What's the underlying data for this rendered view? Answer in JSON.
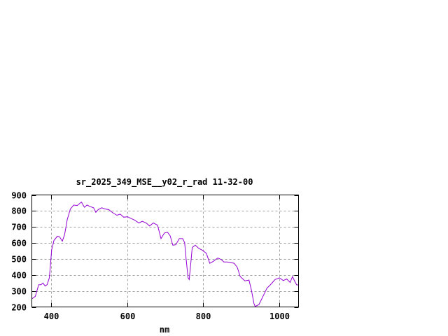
{
  "chart_data": {
    "type": "line",
    "title": "sr_2025_349_MSE__y02_r_rad 11-32-00",
    "xlabel": "nm",
    "ylabel": "",
    "xlim": [
      350,
      1050
    ],
    "ylim": [
      200,
      900
    ],
    "xticks": [
      400,
      600,
      800,
      1000
    ],
    "yticks": [
      200,
      300,
      400,
      500,
      600,
      700,
      800,
      900
    ],
    "grid": true,
    "legend": "none",
    "line_color": "#9400d3",
    "series": [
      {
        "x": [
          350,
          359,
          368,
          374,
          379,
          385,
          390,
          396,
          399,
          402,
          408,
          417,
          423,
          430,
          436,
          443,
          451,
          460,
          469,
          480,
          488,
          495,
          503,
          512,
          518,
          524,
          533,
          543,
          552,
          561,
          573,
          582,
          591,
          601,
          610,
          619,
          631,
          640,
          650,
          659,
          669,
          680,
          689,
          698,
          706,
          713,
          720,
          728,
          737,
          746,
          751,
          755,
          760,
          763,
          767,
          771,
          779,
          789,
          798,
          808,
          817,
          826,
          838,
          847,
          854,
          863,
          881,
          889,
          897,
          909,
          920,
          926,
          933,
          936,
          946,
          955,
          967,
          979,
          988,
          1000,
          1010,
          1019,
          1028,
          1034,
          1040,
          1045,
          1050
        ],
        "y": [
          251,
          266,
          339,
          339,
          350,
          331,
          339,
          382,
          470,
          557,
          616,
          642,
          638,
          611,
          652,
          747,
          812,
          837,
          834,
          856,
          823,
          837,
          827,
          820,
          791,
          808,
          820,
          812,
          808,
          791,
          773,
          780,
          761,
          764,
          753,
          744,
          725,
          735,
          725,
          706,
          725,
          711,
          627,
          662,
          667,
          645,
          586,
          589,
          627,
          627,
          601,
          499,
          382,
          371,
          470,
          572,
          586,
          565,
          554,
          535,
          473,
          485,
          506,
          496,
          481,
          481,
          473,
          448,
          390,
          363,
          368,
          309,
          222,
          203,
          215,
          258,
          317,
          346,
          371,
          382,
          365,
          375,
          353,
          390,
          360,
          338,
          338
        ]
      }
    ]
  }
}
